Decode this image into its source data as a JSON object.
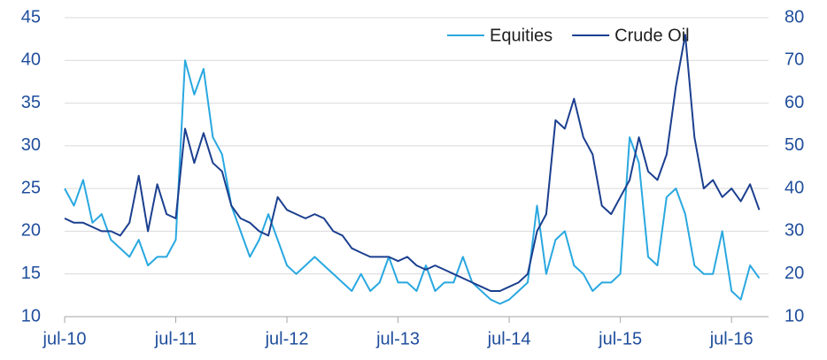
{
  "chart_data": {
    "type": "line",
    "x": [
      "2010-07",
      "2010-08",
      "2010-09",
      "2010-10",
      "2010-11",
      "2010-12",
      "2011-01",
      "2011-02",
      "2011-03",
      "2011-04",
      "2011-05",
      "2011-06",
      "2011-07",
      "2011-08",
      "2011-09",
      "2011-10",
      "2011-11",
      "2011-12",
      "2012-01",
      "2012-02",
      "2012-03",
      "2012-04",
      "2012-05",
      "2012-06",
      "2012-07",
      "2012-08",
      "2012-09",
      "2012-10",
      "2012-11",
      "2012-12",
      "2013-01",
      "2013-02",
      "2013-03",
      "2013-04",
      "2013-05",
      "2013-06",
      "2013-07",
      "2013-08",
      "2013-09",
      "2013-10",
      "2013-11",
      "2013-12",
      "2014-01",
      "2014-02",
      "2014-03",
      "2014-04",
      "2014-05",
      "2014-06",
      "2014-07",
      "2014-08",
      "2014-09",
      "2014-10",
      "2014-11",
      "2014-12",
      "2015-01",
      "2015-02",
      "2015-03",
      "2015-04",
      "2015-05",
      "2015-06",
      "2015-07",
      "2015-08",
      "2015-09",
      "2015-10",
      "2015-11",
      "2015-12",
      "2016-01",
      "2016-02",
      "2016-03",
      "2016-04",
      "2016-05",
      "2016-06",
      "2016-07",
      "2016-08",
      "2016-09",
      "2016-10"
    ],
    "series": [
      {
        "name": "Equities",
        "color": "#29a8e0",
        "values": [
          25,
          23,
          26,
          21,
          22,
          19,
          18,
          17,
          19,
          16,
          17,
          17,
          19,
          40,
          36,
          39,
          31,
          29,
          23,
          20,
          17,
          19,
          22,
          19,
          16,
          15,
          16,
          17,
          16,
          15,
          14,
          13,
          15,
          13,
          14,
          17,
          14,
          14,
          13,
          16,
          13,
          14,
          14,
          17,
          14,
          13,
          12,
          11.5,
          12,
          13,
          14,
          23,
          15,
          19,
          20,
          16,
          15,
          13,
          14,
          14,
          15,
          31,
          28,
          17,
          16,
          24,
          25,
          22,
          16,
          15,
          15,
          20,
          13,
          12,
          16,
          14.5
        ]
      },
      {
        "name": "Crude Oil",
        "color": "#1b3f8f",
        "axis": "y2",
        "values": [
          33,
          32,
          32,
          31,
          30,
          30,
          29,
          32,
          43,
          30,
          41,
          34,
          33,
          54,
          46,
          53,
          46,
          44,
          36,
          33,
          32,
          30,
          29,
          38,
          35,
          34,
          33,
          34,
          33,
          30,
          29,
          26,
          25,
          24,
          24,
          24,
          23,
          24,
          22,
          21,
          22,
          21,
          20,
          19,
          18,
          17,
          16,
          16,
          17,
          18,
          20,
          30,
          34,
          56,
          54,
          61,
          52,
          48,
          36,
          34,
          38,
          42,
          52,
          44,
          42,
          48,
          64,
          76,
          52,
          40,
          42,
          38,
          40,
          37,
          41,
          35
        ]
      }
    ],
    "xlim": [
      "2010-07",
      "2016-11"
    ],
    "xticks": [
      {
        "value": "2010-07",
        "label": "jul-10"
      },
      {
        "value": "2011-07",
        "label": "jul-11"
      },
      {
        "value": "2012-07",
        "label": "jul-12"
      },
      {
        "value": "2013-07",
        "label": "jul-13"
      },
      {
        "value": "2014-07",
        "label": "jul-14"
      },
      {
        "value": "2015-07",
        "label": "jul-15"
      },
      {
        "value": "2016-07",
        "label": "jul-16"
      }
    ],
    "ylim": [
      10,
      45
    ],
    "yticks": [
      10,
      15,
      20,
      25,
      30,
      35,
      40,
      45
    ],
    "y2lim": [
      10,
      80
    ],
    "y2ticks": [
      10,
      20,
      30,
      40,
      50,
      60,
      70,
      80
    ],
    "grid": true,
    "legend": "top-right"
  }
}
